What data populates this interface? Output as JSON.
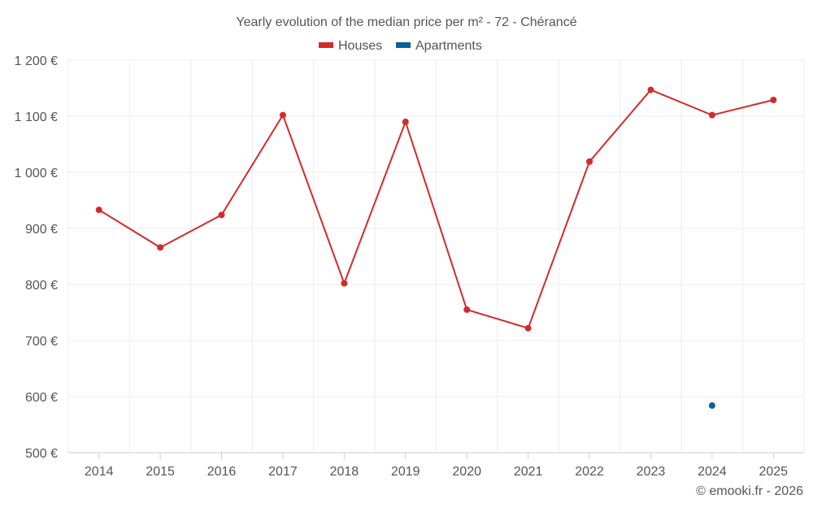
{
  "chart_data": {
    "type": "line",
    "title": "Yearly evolution of the median price per m² - 72 - Chérancé",
    "categories": [
      "2014",
      "2015",
      "2016",
      "2017",
      "2018",
      "2019",
      "2020",
      "2021",
      "2022",
      "2023",
      "2024",
      "2025"
    ],
    "series": [
      {
        "name": "Houses",
        "color": "#d42a2a",
        "values": [
          933,
          866,
          924,
          1102,
          802,
          1090,
          755,
          722,
          1019,
          1147,
          1102,
          1129
        ]
      },
      {
        "name": "Apartments",
        "color": "#0b6196",
        "values": [
          null,
          null,
          null,
          null,
          null,
          null,
          null,
          null,
          null,
          null,
          584,
          null
        ]
      }
    ],
    "ylim": [
      500,
      1200
    ],
    "yticks": [
      500,
      600,
      700,
      800,
      900,
      1000,
      1100,
      1200
    ],
    "ytick_labels": [
      "500 €",
      "600 €",
      "700 €",
      "800 €",
      "900 €",
      "1 000 €",
      "1 100 €",
      "1 200 €"
    ],
    "xlabel": "",
    "ylabel": "",
    "legend_position": "top-center",
    "grid": true,
    "credit": "© emooki.fr - 2026"
  }
}
